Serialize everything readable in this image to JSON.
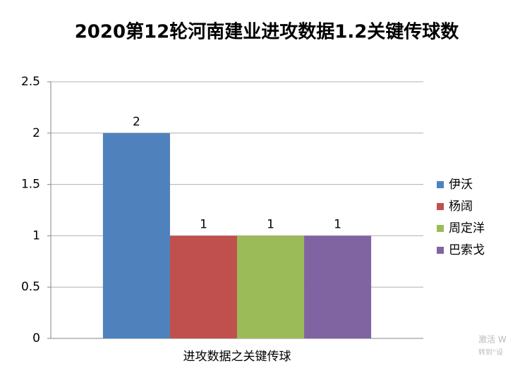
{
  "chart_data": {
    "type": "bar",
    "title": "2020第12轮河南建业进攻数据1.2关键传球数",
    "categories": [
      "进攻数据之关键传球"
    ],
    "series": [
      {
        "name": "伊沃",
        "color": "#4f81bd",
        "values": [
          2
        ]
      },
      {
        "name": "杨阔",
        "color": "#c0504d",
        "values": [
          1
        ]
      },
      {
        "name": "周定洋",
        "color": "#9bbb59",
        "values": [
          1
        ]
      },
      {
        "name": "巴索戈",
        "color": "#8064a2",
        "values": [
          1
        ]
      }
    ],
    "ylim": [
      0,
      2.5
    ],
    "yticks": [
      0,
      0.5,
      1,
      1.5,
      2,
      2.5
    ],
    "grid": true,
    "legend": "right",
    "watermark": [
      "激活 W",
      "转到“设"
    ]
  }
}
